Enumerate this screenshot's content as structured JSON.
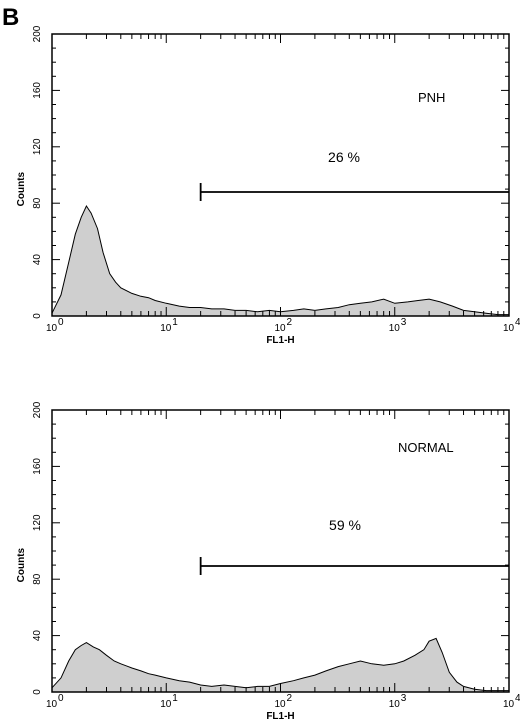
{
  "panel_letter": "B",
  "chart_data": [
    {
      "type": "area",
      "label": "PNH",
      "gate_percent_label": "26 %",
      "xlabel": "FL1-H",
      "ylabel": "Counts",
      "x_scale": "log",
      "xlim": [
        1,
        10000
      ],
      "ylim": [
        0,
        200
      ],
      "x_ticks": [
        {
          "base": "10",
          "exp": "0"
        },
        {
          "base": "10",
          "exp": "1"
        },
        {
          "base": "10",
          "exp": "2"
        },
        {
          "base": "10",
          "exp": "3"
        },
        {
          "base": "10",
          "exp": "4"
        }
      ],
      "y_ticks": [
        "0",
        "40",
        "80",
        "120",
        "160",
        "200"
      ],
      "gate_range": [
        20,
        10000
      ],
      "x": [
        1,
        1.2,
        1.4,
        1.6,
        1.8,
        2.0,
        2.2,
        2.5,
        2.8,
        3.2,
        3.6,
        4,
        5,
        6,
        7,
        8,
        10,
        13,
        16,
        20,
        25,
        32,
        40,
        50,
        63,
        80,
        100,
        130,
        160,
        200,
        250,
        320,
        400,
        500,
        630,
        800,
        1000,
        1300,
        1600,
        2000,
        2500,
        3200,
        4000,
        5000,
        6300,
        8000,
        10000
      ],
      "y": [
        2,
        15,
        38,
        58,
        70,
        78,
        73,
        62,
        45,
        30,
        24,
        20,
        16,
        14,
        13,
        11,
        9,
        7,
        6,
        6,
        5,
        5,
        4,
        4,
        3,
        4,
        3,
        4,
        5,
        4,
        5,
        6,
        8,
        9,
        10,
        12,
        9,
        10,
        11,
        12,
        10,
        7,
        4,
        3,
        2,
        1,
        1
      ]
    },
    {
      "type": "area",
      "label": "NORMAL",
      "gate_percent_label": "59 %",
      "xlabel": "FL1-H",
      "ylabel": "Counts",
      "x_scale": "log",
      "xlim": [
        1,
        10000
      ],
      "ylim": [
        0,
        200
      ],
      "x_ticks": [
        {
          "base": "10",
          "exp": "0"
        },
        {
          "base": "10",
          "exp": "1"
        },
        {
          "base": "10",
          "exp": "2"
        },
        {
          "base": "10",
          "exp": "3"
        },
        {
          "base": "10",
          "exp": "4"
        }
      ],
      "y_ticks": [
        "0",
        "40",
        "80",
        "120",
        "160",
        "200"
      ],
      "gate_range": [
        20,
        10000
      ],
      "x": [
        1,
        1.2,
        1.4,
        1.6,
        1.8,
        2.0,
        2.3,
        2.6,
        3.0,
        3.5,
        4,
        5,
        6,
        7,
        8,
        10,
        13,
        16,
        20,
        25,
        32,
        40,
        50,
        63,
        80,
        100,
        130,
        160,
        200,
        250,
        320,
        400,
        500,
        630,
        800,
        1000,
        1200,
        1500,
        1800,
        2000,
        2300,
        2600,
        3000,
        3500,
        4000,
        5000,
        6300,
        8000,
        10000
      ],
      "y": [
        3,
        10,
        22,
        30,
        33,
        35,
        32,
        30,
        26,
        22,
        20,
        17,
        15,
        13,
        12,
        10,
        8,
        7,
        5,
        4,
        5,
        4,
        3,
        4,
        4,
        6,
        8,
        10,
        12,
        15,
        18,
        20,
        22,
        20,
        19,
        20,
        22,
        26,
        30,
        36,
        38,
        28,
        14,
        7,
        4,
        2,
        1,
        1,
        1
      ]
    }
  ]
}
